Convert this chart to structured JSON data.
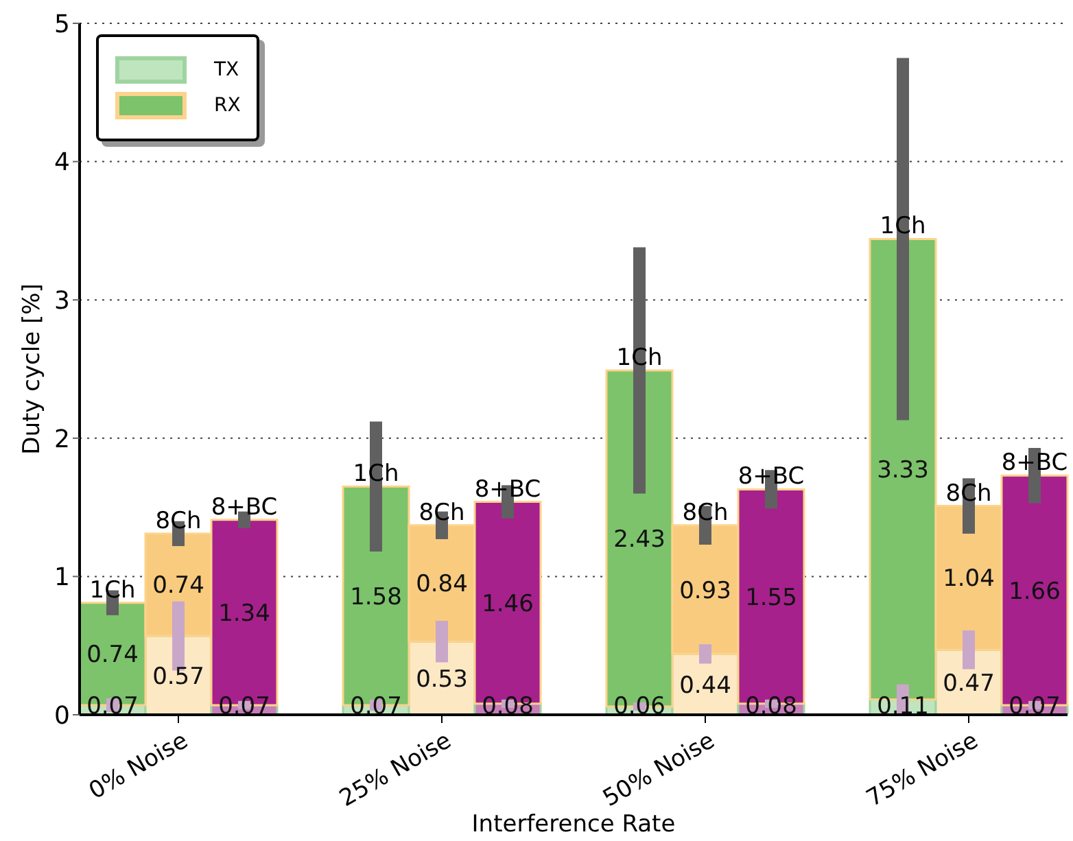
{
  "chart_data": {
    "type": "bar",
    "stacked": true,
    "xlabel": "Interference Rate",
    "ylabel": "Duty cycle [%]",
    "categories": [
      null,
      "0% Noise",
      null,
      null,
      null,
      "25% Noise",
      null,
      null,
      null,
      "50% Noise",
      null,
      null,
      null,
      "75% Noise",
      null
    ],
    "series": [
      {
        "name": "TX",
        "color": "#bfe5bf",
        "colors": [
          "#bfe5bf",
          "#fde8c4",
          "#c77dba",
          null,
          "#bfe5bf",
          "#fde8c4",
          "#c77dba",
          null,
          "#bfe5bf",
          "#fde8c4",
          "#c77dba",
          null,
          "#bfe5bf",
          "#fde8c4",
          "#c77dba"
        ],
        "values": [
          0.07,
          0.57,
          0.07,
          null,
          0.07,
          0.53,
          0.08,
          null,
          0.06,
          0.44,
          0.08,
          null,
          0.11,
          0.47,
          0.07
        ],
        "errors": [
          0.05,
          0.25,
          0.03,
          null,
          0.04,
          0.15,
          0.03,
          null,
          0.03,
          0.07,
          0.03,
          null,
          0.11,
          0.14,
          0.03
        ]
      },
      {
        "name": "RX",
        "color": "#7cc36b",
        "colors": [
          "#7cc36b",
          "#f9cb7f",
          "#a6218c",
          null,
          "#7cc36b",
          "#f9cb7f",
          "#a6218c",
          null,
          "#7cc36b",
          "#f9cb7f",
          "#a6218c",
          null,
          "#7cc36b",
          "#f9cb7f",
          "#a6218c"
        ],
        "values": [
          0.74,
          0.74,
          1.34,
          null,
          1.58,
          0.84,
          1.46,
          null,
          2.43,
          0.93,
          1.55,
          null,
          3.33,
          1.04,
          1.66
        ],
        "errors": [
          0.09,
          0.09,
          0.06,
          null,
          0.47,
          0.1,
          0.12,
          null,
          0.89,
          0.14,
          0.14,
          null,
          1.31,
          0.2,
          0.2
        ]
      }
    ],
    "annotations": [
      {
        "text": "1Ch",
        "y": 0.81
      },
      {
        "text": "8Ch",
        "y": 1.31
      },
      {
        "text": "8+BC",
        "y": 1.41
      },
      {
        "text": "1Ch",
        "y": 1.65
      },
      {
        "text": "8Ch",
        "y": 1.37
      },
      {
        "text": "8+BC",
        "y": 1.54
      },
      {
        "text": "1Ch",
        "y": 2.49
      },
      {
        "text": "8Ch",
        "y": 1.37
      },
      {
        "text": "8+BC",
        "y": 1.63
      },
      {
        "text": "1Ch",
        "y": 3.44
      },
      {
        "text": "8Ch",
        "y": 1.51
      },
      {
        "text": "8+BC",
        "y": 1.73
      }
    ],
    "data_labels": true,
    "ylim": [
      0,
      5
    ],
    "yticks": [
      0,
      1,
      2,
      3,
      4,
      5
    ],
    "grid": "y",
    "legend": "top left"
  }
}
